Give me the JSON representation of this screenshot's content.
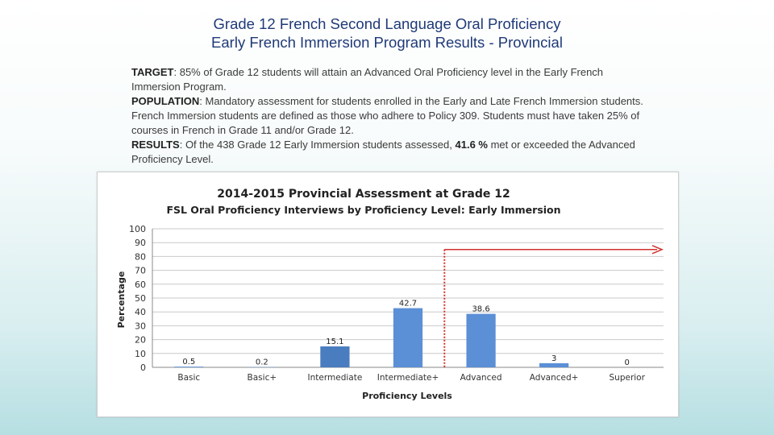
{
  "heading": {
    "line1": "Grade 12 French Second Language Oral Proficiency",
    "line2": "Early French Immersion Program Results - Provincial"
  },
  "info": {
    "target": {
      "label": "TARGET",
      "text": ": 85% of Grade 12 students will attain an Advanced Oral Proficiency level in the Early French Immersion Program."
    },
    "population": {
      "label": "POPULATION",
      "text": ": Mandatory assessment for students enrolled in the Early and Late French Immersion students.  French Immersion students are defined as those who adhere to Policy 309. Students must have taken 25% of courses in French in Grade 11 and/or Grade 12."
    },
    "results": {
      "label": "RESULTS",
      "text_before": ": Of the 438 Grade 12 Early Immersion students assessed, ",
      "highlight": "41.6 %",
      "text_after": " met or exceeded the Advanced Proficiency Level."
    }
  },
  "chart_data": {
    "type": "bar",
    "title": "2014-2015 Provincial Assessment at Grade 12",
    "subtitle": "FSL Oral Proficiency Interviews by Proficiency Level: Early Immersion",
    "xlabel": "Proficiency Levels",
    "ylabel": "Percentage",
    "categories": [
      "Basic",
      "Basic+",
      "Intermediate",
      "Intermediate+",
      "Advanced",
      "Advanced+",
      "Superior"
    ],
    "values": [
      0.5,
      0.2,
      15.1,
      42.7,
      38.6,
      3,
      0
    ],
    "value_labels": [
      "0.5",
      "0.2",
      "15.1",
      "42.7",
      "38.6",
      "3",
      "0"
    ],
    "ylim": [
      0,
      100
    ],
    "yticks": [
      "0",
      "10",
      "20",
      "30",
      "40",
      "50",
      "60",
      "70",
      "80",
      "90",
      "100"
    ],
    "grid": true,
    "legend": "none",
    "colors": {
      "bar": "#5b8fd6",
      "bar_intermediate": "#4a7cc0",
      "target_line": "#d0312d"
    },
    "annotation": {
      "type": "target-marker",
      "starts_between": [
        "Intermediate+",
        "Advanced"
      ],
      "arrow_level": 85
    }
  }
}
